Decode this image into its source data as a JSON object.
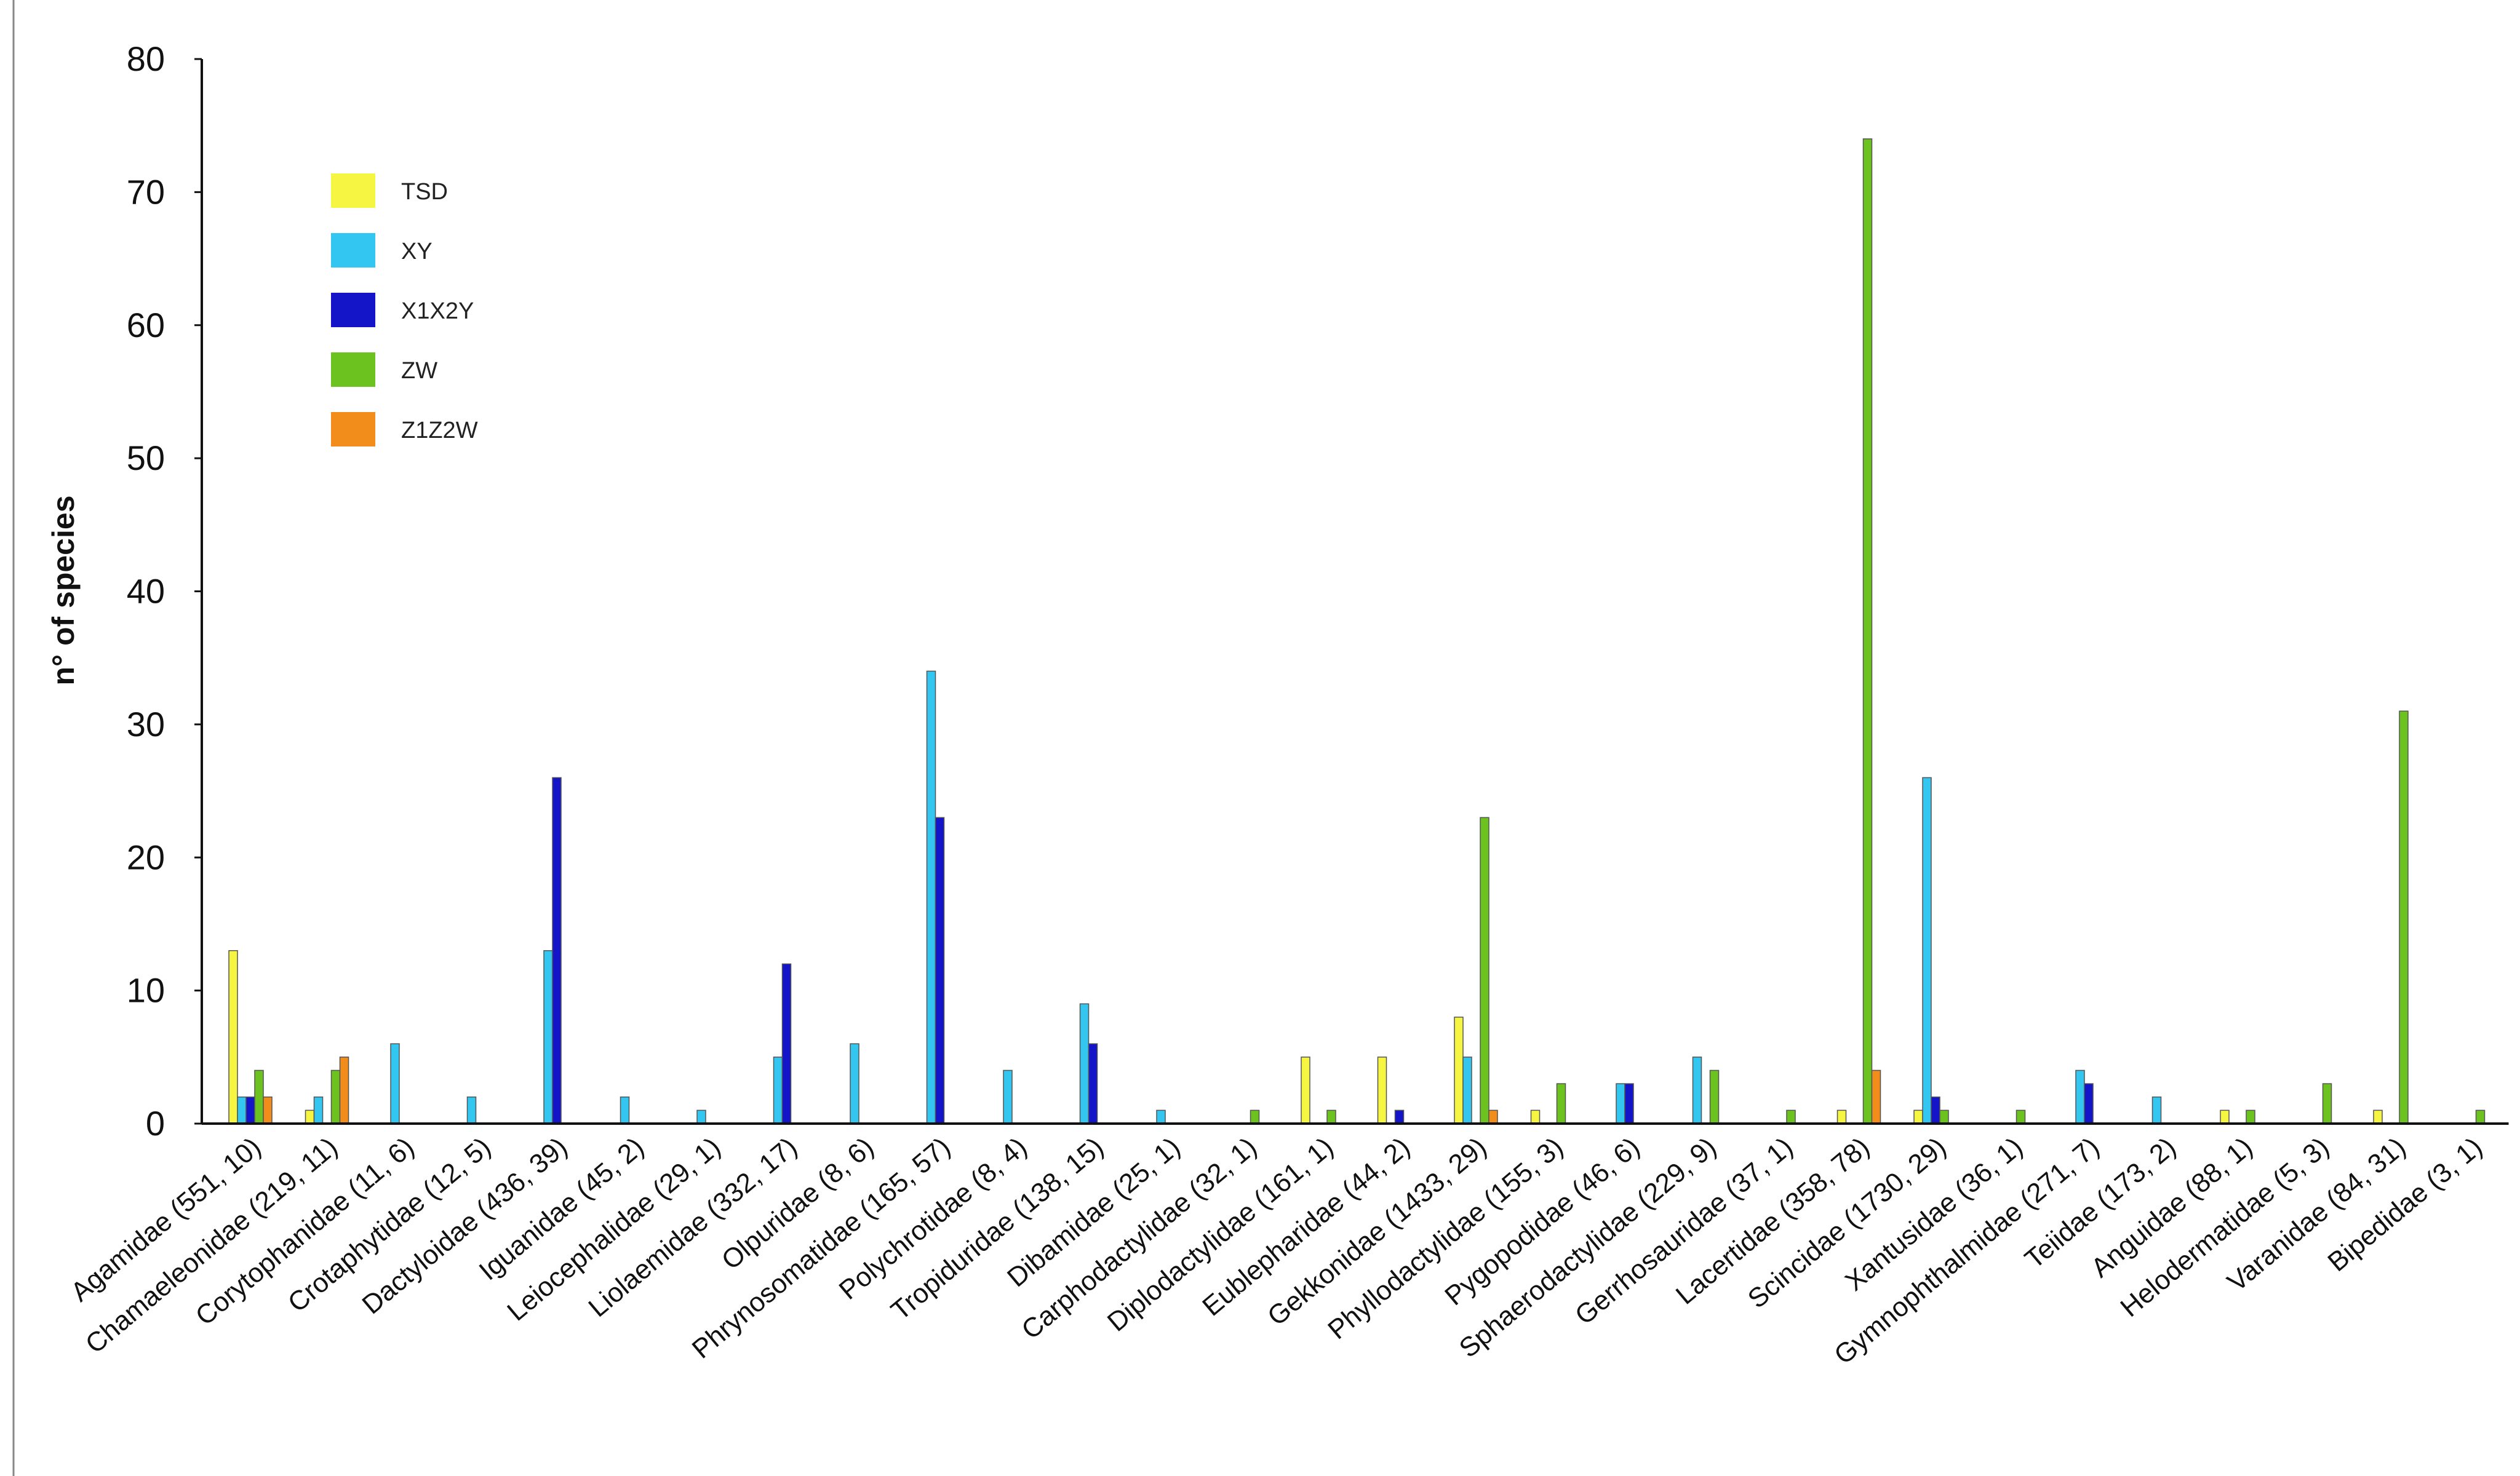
{
  "chart_data": {
    "type": "bar",
    "title": "",
    "xlabel": "",
    "ylabel": "n° of species",
    "ylim": [
      0,
      80
    ],
    "yticks": [
      "0",
      "10",
      "20",
      "30",
      "40",
      "50",
      "60",
      "70",
      "80"
    ],
    "legend_position": "top-left",
    "grid": false,
    "categories": [
      "Agamidae (551, 10)",
      "Chamaeleonidae (219, 11)",
      "Corytophanidae (11, 6)",
      "Crotaphytidae (12, 5)",
      "Dactyloidae (436, 39)",
      "Iguanidae (45, 2)",
      "Leiocephalidae (29, 1)",
      "Liolaemidae (332, 17)",
      "Olpuridae (8, 6)",
      "Phrynosomatidae (165, 57)",
      "Polychrotidae (8, 4)",
      "Tropiduridae (138, 15)",
      "Dibamidae (25, 1)",
      "Carphodactylidae (32, 1)",
      "Diplodactylidae (161, 1)",
      "Eublepharidae (44, 2)",
      "Gekkonidae (1433, 29)",
      "Phyllodactylidae (155, 3)",
      "Pygopodidae (46, 6)",
      "Sphaerodactylidae (229, 9)",
      "Gerrhosauridae (37, 1)",
      "Lacertidae (358, 78)",
      "Scincidae (1730, 29)",
      "Xantusidae (36, 1)",
      "Gymnophthalmidae (271, 7)",
      "Teiidae (173, 2)",
      "Anguidae (88, 1)",
      "Helodermatidae (5, 3)",
      "Varanidae (84, 31)",
      "Bipedidae (3, 1)"
    ],
    "series": [
      {
        "name": "TSD",
        "color": "#f5f542",
        "values": [
          13,
          1,
          0,
          0,
          0,
          0,
          0,
          0,
          0,
          0,
          0,
          0,
          0,
          0,
          5,
          5,
          8,
          1,
          0,
          0,
          0,
          1,
          1,
          0,
          0,
          0,
          1,
          0,
          1,
          0
        ]
      },
      {
        "name": "XY",
        "color": "#33c6f0",
        "values": [
          2,
          2,
          6,
          2,
          13,
          2,
          1,
          5,
          6,
          34,
          4,
          9,
          1,
          0,
          0,
          0,
          5,
          0,
          3,
          5,
          0,
          0,
          26,
          0,
          4,
          2,
          0,
          0,
          0,
          0
        ]
      },
      {
        "name": "X1X2Y",
        "color": "#1414c8",
        "values": [
          2,
          0,
          0,
          0,
          26,
          0,
          0,
          12,
          0,
          23,
          0,
          6,
          0,
          0,
          0,
          1,
          0,
          0,
          3,
          0,
          0,
          0,
          2,
          0,
          3,
          0,
          0,
          0,
          0,
          0
        ]
      },
      {
        "name": "ZW",
        "color": "#6cc21e",
        "values": [
          4,
          4,
          0,
          0,
          0,
          0,
          0,
          0,
          0,
          0,
          0,
          0,
          0,
          1,
          1,
          0,
          23,
          3,
          0,
          4,
          1,
          74,
          1,
          1,
          0,
          0,
          1,
          3,
          31,
          1
        ]
      },
      {
        "name": "Z1Z2W",
        "color": "#f28c1a",
        "values": [
          2,
          5,
          0,
          0,
          0,
          0,
          0,
          0,
          0,
          0,
          0,
          0,
          0,
          0,
          0,
          0,
          1,
          0,
          0,
          0,
          0,
          4,
          0,
          0,
          0,
          0,
          0,
          0,
          0,
          0
        ]
      }
    ]
  }
}
